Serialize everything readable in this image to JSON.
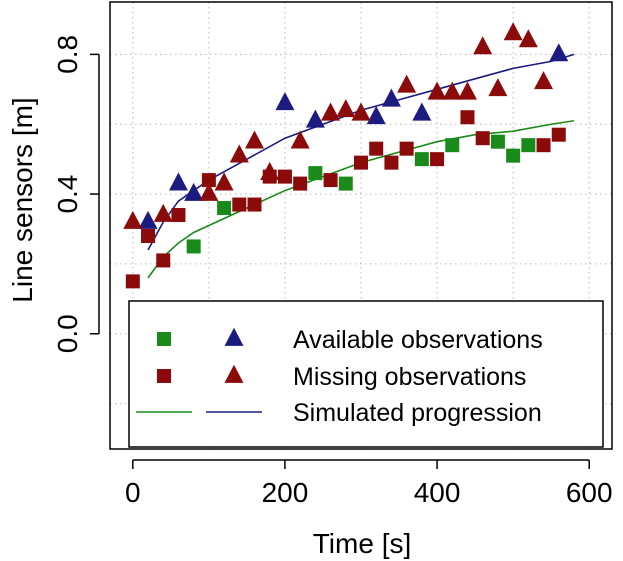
{
  "chart_data": {
    "type": "scatter",
    "xlabel": "Time [s]",
    "ylabel": "Line sensors [m]",
    "xlim": [
      -30,
      630
    ],
    "ylim": [
      -0.33,
      0.95
    ],
    "x_ticks": [
      0,
      200,
      400,
      600
    ],
    "x_tick_labels": [
      "0",
      "200",
      "400",
      "600"
    ],
    "y_ticks": [
      0.0,
      0.4,
      0.8
    ],
    "y_tick_labels": [
      "0.0",
      "0.4",
      "0.8"
    ],
    "grid": true,
    "legend_position": "bottom-right",
    "colors": {
      "green": "#1a8a1a",
      "darkred": "#8b0a0a",
      "navy": "#1c1c80"
    },
    "series": [
      {
        "group": "green-squares",
        "marker": "square",
        "color": "#1a8a1a",
        "points": [
          [
            80,
            0.25
          ],
          [
            120,
            0.36
          ],
          [
            240,
            0.46
          ],
          [
            280,
            0.43
          ],
          [
            380,
            0.5
          ],
          [
            420,
            0.54
          ],
          [
            480,
            0.55
          ],
          [
            500,
            0.51
          ],
          [
            520,
            0.54
          ]
        ]
      },
      {
        "group": "red-squares",
        "marker": "square",
        "color": "#8b0a0a",
        "points": [
          [
            0,
            0.15
          ],
          [
            20,
            0.28
          ],
          [
            40,
            0.21
          ],
          [
            60,
            0.34
          ],
          [
            100,
            0.44
          ],
          [
            140,
            0.37
          ],
          [
            160,
            0.37
          ],
          [
            180,
            0.45
          ],
          [
            200,
            0.45
          ],
          [
            220,
            0.43
          ],
          [
            260,
            0.44
          ],
          [
            300,
            0.49
          ],
          [
            320,
            0.53
          ],
          [
            340,
            0.49
          ],
          [
            360,
            0.53
          ],
          [
            400,
            0.5
          ],
          [
            440,
            0.62
          ],
          [
            460,
            0.56
          ],
          [
            540,
            0.54
          ],
          [
            560,
            0.57
          ]
        ]
      },
      {
        "group": "blue-triangles",
        "marker": "triangle",
        "color": "#1c1c80",
        "points": [
          [
            20,
            0.32
          ],
          [
            60,
            0.43
          ],
          [
            80,
            0.4
          ],
          [
            200,
            0.66
          ],
          [
            240,
            0.61
          ],
          [
            320,
            0.62
          ],
          [
            340,
            0.67
          ],
          [
            380,
            0.63
          ],
          [
            560,
            0.8
          ]
        ]
      },
      {
        "group": "red-triangles",
        "marker": "triangle",
        "color": "#8b0a0a",
        "points": [
          [
            0,
            0.32
          ],
          [
            40,
            0.34
          ],
          [
            100,
            0.4
          ],
          [
            120,
            0.43
          ],
          [
            140,
            0.51
          ],
          [
            160,
            0.55
          ],
          [
            180,
            0.46
          ],
          [
            220,
            0.55
          ],
          [
            260,
            0.63
          ],
          [
            280,
            0.64
          ],
          [
            300,
            0.63
          ],
          [
            360,
            0.71
          ],
          [
            400,
            0.69
          ],
          [
            420,
            0.69
          ],
          [
            440,
            0.69
          ],
          [
            460,
            0.82
          ],
          [
            480,
            0.7
          ],
          [
            500,
            0.86
          ],
          [
            520,
            0.84
          ],
          [
            540,
            0.72
          ]
        ]
      },
      {
        "group": "green-curve",
        "marker": "line",
        "color": "#1a8a1a",
        "points": [
          [
            20,
            0.16
          ],
          [
            40,
            0.22
          ],
          [
            60,
            0.26
          ],
          [
            80,
            0.29
          ],
          [
            100,
            0.31
          ],
          [
            150,
            0.36
          ],
          [
            200,
            0.41
          ],
          [
            250,
            0.45
          ],
          [
            300,
            0.49
          ],
          [
            350,
            0.52
          ],
          [
            400,
            0.55
          ],
          [
            450,
            0.57
          ],
          [
            500,
            0.58
          ],
          [
            550,
            0.6
          ],
          [
            580,
            0.61
          ]
        ]
      },
      {
        "group": "blue-curve",
        "marker": "line",
        "color": "#1c1c80",
        "points": [
          [
            20,
            0.24
          ],
          [
            40,
            0.32
          ],
          [
            60,
            0.38
          ],
          [
            80,
            0.41
          ],
          [
            100,
            0.44
          ],
          [
            150,
            0.5
          ],
          [
            200,
            0.56
          ],
          [
            250,
            0.6
          ],
          [
            300,
            0.64
          ],
          [
            350,
            0.67
          ],
          [
            400,
            0.7
          ],
          [
            450,
            0.73
          ],
          [
            500,
            0.76
          ],
          [
            550,
            0.78
          ],
          [
            580,
            0.8
          ]
        ]
      }
    ],
    "legend": {
      "entries": [
        {
          "label": "Available observations",
          "left": {
            "marker": "square",
            "color": "#1a8a1a"
          },
          "right": {
            "marker": "triangle",
            "color": "#1c1c80"
          }
        },
        {
          "label": "Missing observations",
          "left": {
            "marker": "square",
            "color": "#8b0a0a"
          },
          "right": {
            "marker": "triangle",
            "color": "#8b0a0a"
          }
        },
        {
          "label": "Simulated progression",
          "left": {
            "marker": "line",
            "color": "#1a8a1a"
          },
          "right": {
            "marker": "line",
            "color": "#1c1c80"
          }
        }
      ]
    }
  }
}
